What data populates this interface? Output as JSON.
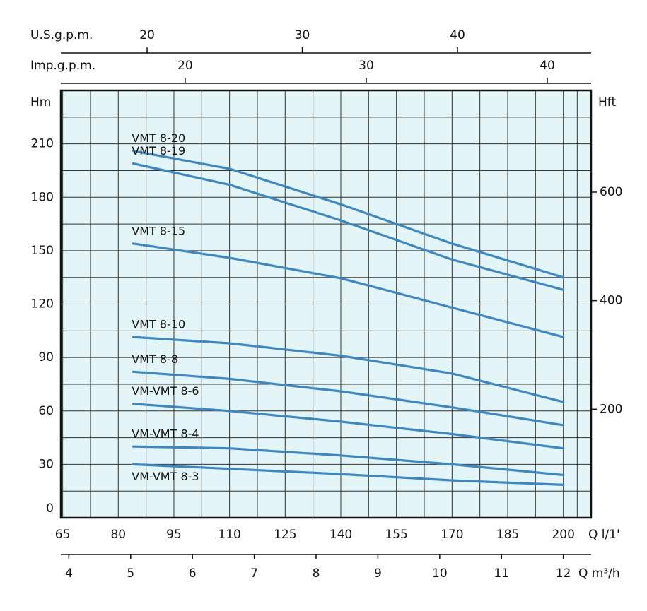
{
  "chart_data": {
    "type": "line",
    "x": [
      84,
      110,
      140,
      170,
      200
    ],
    "xlim": [
      64.5,
      207.5
    ],
    "xticks": [
      65,
      80,
      95,
      110,
      125,
      140,
      155,
      170,
      185,
      200
    ],
    "xlabel": "Q l/1'",
    "ylim": [
      0,
      240
    ],
    "yticks": [
      0,
      30,
      60,
      90,
      120,
      150,
      180,
      210
    ],
    "ylabel": "Hm",
    "y2lim": [
      0,
      787.4
    ],
    "y2ticks": [
      200,
      400,
      600
    ],
    "y2label": "Hft",
    "grid": true,
    "background": "#e4f5f7",
    "secondary_x_axes": [
      {
        "label": "Q m³/h",
        "position": "bottom",
        "lim": [
          3.87,
          12.45
        ],
        "ticks": [
          4,
          5,
          6,
          7,
          8,
          9,
          10,
          11,
          12
        ]
      },
      {
        "label": "U.S.g.p.m.",
        "position": "top",
        "lim": [
          14.44,
          48.61
        ],
        "ticks": [
          20,
          30,
          40
        ]
      },
      {
        "label": "Imp.g.p.m.",
        "position": "top",
        "lim": [
          13.13,
          42.42
        ],
        "ticks": [
          20,
          30,
          40
        ]
      }
    ],
    "series": [
      {
        "name": "VMT 8-20",
        "color": "#3b88c9",
        "values": [
          206,
          196,
          176,
          154,
          135
        ]
      },
      {
        "name": "VMT 8-19",
        "color": "#3b88c9",
        "values": [
          199,
          187,
          167,
          145,
          128
        ]
      },
      {
        "name": "VMT 8-15",
        "color": "#3b88c9",
        "values": [
          154,
          146,
          134.5,
          118,
          101.5
        ]
      },
      {
        "name": "VMT 8-10",
        "color": "#3b88c9",
        "values": [
          101.5,
          98,
          91,
          81,
          65
        ]
      },
      {
        "name": "VMT 8-8",
        "color": "#3b88c9",
        "values": [
          82,
          78,
          71,
          62,
          52
        ]
      },
      {
        "name": "VM-VMT 8-6",
        "color": "#3b88c9",
        "values": [
          64,
          60,
          54,
          47,
          39
        ]
      },
      {
        "name": "VM-VMT 8-4",
        "color": "#3b88c9",
        "values": [
          40,
          39,
          35,
          30,
          24
        ]
      },
      {
        "name": "VM-VMT 8-3",
        "color": "#3b88c9",
        "values": [
          30,
          27.5,
          24.5,
          21,
          18.5
        ]
      }
    ]
  }
}
